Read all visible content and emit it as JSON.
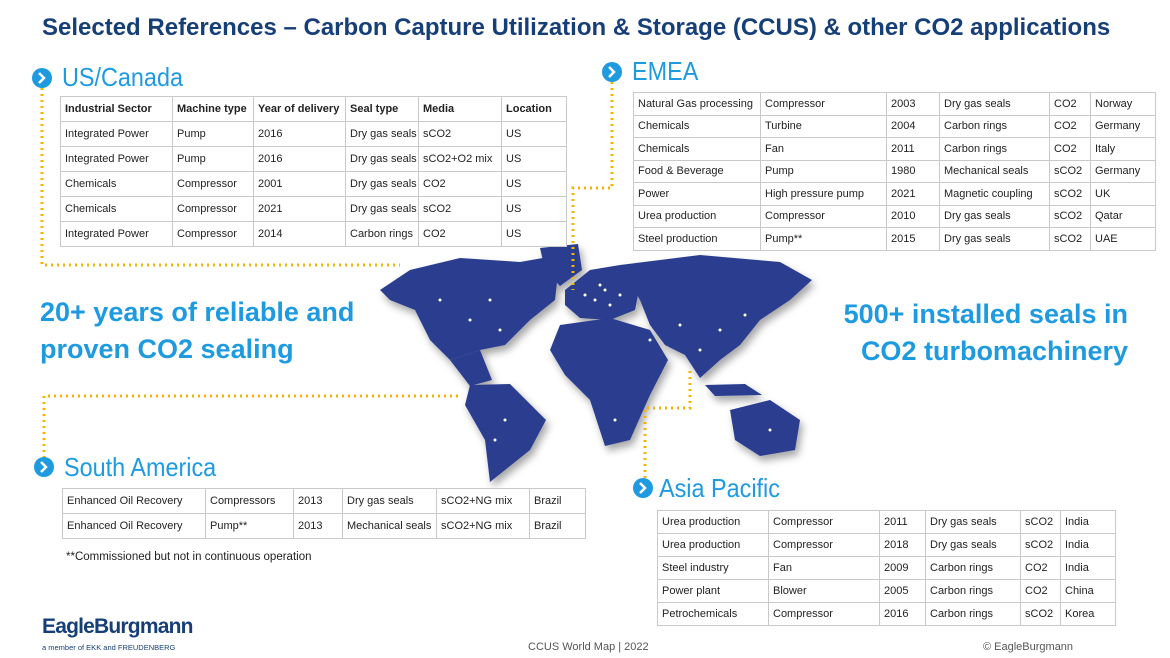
{
  "title": "Selected References – Carbon Capture Utilization & Storage (CCUS) & other CO2 applications",
  "us_canada": {
    "heading": "US/Canada",
    "header": [
      "Industrial Sector",
      "Machine type",
      "Year of delivery",
      "Seal type",
      "Media",
      "Location"
    ],
    "rows": [
      [
        "Integrated Power",
        "Pump",
        "2016",
        "Dry gas seals",
        "sCO2",
        "US"
      ],
      [
        "Integrated Power",
        "Pump",
        "2016",
        "Dry gas seals",
        "sCO2+O2 mix",
        "US"
      ],
      [
        "Chemicals",
        "Compressor",
        "2001",
        "Dry gas seals",
        "CO2",
        "US"
      ],
      [
        "Chemicals",
        "Compressor",
        "2021",
        "Dry gas seals",
        "sCO2",
        "US"
      ],
      [
        "Integrated Power",
        "Compressor",
        "2014",
        "Carbon rings",
        "CO2",
        "US"
      ]
    ]
  },
  "emea": {
    "heading": "EMEA",
    "rows": [
      [
        "Natural Gas processing",
        "Compressor",
        "2003",
        "Dry gas seals",
        "CO2",
        "Norway"
      ],
      [
        "Chemicals",
        "Turbine",
        "2004",
        "Carbon rings",
        "CO2",
        "Germany"
      ],
      [
        "Chemicals",
        "Fan",
        "2011",
        "Carbon rings",
        "CO2",
        "Italy"
      ],
      [
        "Food & Beverage",
        "Pump",
        "1980",
        "Mechanical seals",
        "sCO2",
        "Germany"
      ],
      [
        "Power",
        "High pressure pump",
        "2021",
        "Magnetic coupling",
        "sCO2",
        "UK"
      ],
      [
        "Urea production",
        "Compressor",
        "2010",
        "Dry gas seals",
        "sCO2",
        "Qatar"
      ],
      [
        "Steel production",
        "Pump**",
        "2015",
        "Dry gas seals",
        "sCO2",
        "UAE"
      ]
    ]
  },
  "south_america": {
    "heading": "South America",
    "rows": [
      [
        "Enhanced Oil Recovery",
        "Compressors",
        "2013",
        "Dry gas seals",
        "sCO2+NG mix",
        "Brazil"
      ],
      [
        "Enhanced Oil Recovery",
        "Pump**",
        "2013",
        "Mechanical seals",
        "sCO2+NG mix",
        "Brazil"
      ]
    ],
    "footnote": "**Commissioned but not in continuous operation"
  },
  "asia_pacific": {
    "heading": "Asia Pacific",
    "rows": [
      [
        "Urea production",
        "Compressor",
        "2011",
        "Dry gas seals",
        "sCO2",
        "India"
      ],
      [
        "Urea production",
        "Compressor",
        "2018",
        "Dry gas seals",
        "sCO2",
        "India"
      ],
      [
        "Steel industry",
        "Fan",
        "2009",
        "Carbon rings",
        "CO2",
        "India"
      ],
      [
        "Power plant",
        "Blower",
        "2005",
        "Carbon rings",
        "CO2",
        "China"
      ],
      [
        "Petrochemicals",
        "Compressor",
        "2016",
        "Carbon rings",
        "sCO2",
        "Korea"
      ]
    ]
  },
  "claims": {
    "left": [
      "20+ years of reliable and",
      "proven CO2 sealing"
    ],
    "right": [
      "500+ installed seals in",
      "CO2 turbomachinery"
    ]
  },
  "footer": {
    "logo": "EagleBurgmann",
    "member": "a member of EKK and FREUDENBERG",
    "center": "CCUS World Map | 2022",
    "copyright": "© EagleBurgmann"
  }
}
